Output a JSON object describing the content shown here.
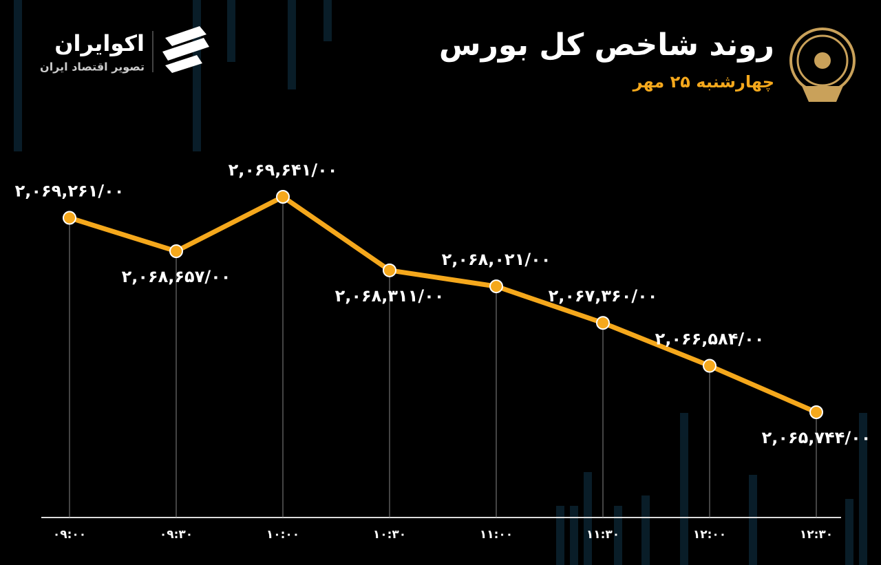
{
  "brand": {
    "name": "اکوایران",
    "tagline": "تصویر اقتصاد ایران"
  },
  "chart_data": {
    "type": "line",
    "title": "روند شاخص کل بورس",
    "subtitle": "چهارشنبه ۲۵ مهر",
    "categories": [
      "۰۹:۰۰",
      "۰۹:۳۰",
      "۱۰:۰۰",
      "۱۰:۳۰",
      "۱۱:۰۰",
      "۱۱:۳۰",
      "۱۲:۰۰",
      "۱۲:۳۰"
    ],
    "values": [
      2069261,
      2068657,
      2069641,
      2068311,
      2068021,
      2067360,
      2066584,
      2065744
    ],
    "value_labels": [
      "۲,۰۶۹,۲۶۱/۰۰",
      "۲,۰۶۸,۶۵۷/۰۰",
      "۲,۰۶۹,۶۴۱/۰۰",
      "۲,۰۶۸,۳۱۱/۰۰",
      "۲,۰۶۸,۰۲۱/۰۰",
      "۲,۰۶۷,۳۶۰/۰۰",
      "۲,۰۶۶,۵۸۴/۰۰",
      "۲,۰۶۵,۷۴۴/۰۰"
    ],
    "color": "#f5a81c"
  }
}
